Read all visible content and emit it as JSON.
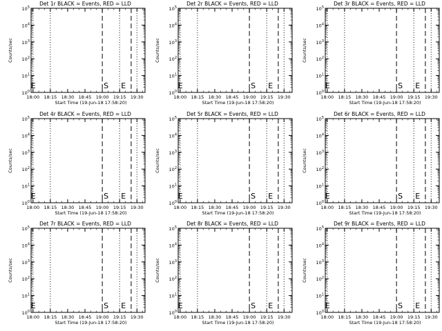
{
  "ylabel": "Counts/sec",
  "xlabel": "Start Time (19-Jun-18 17:58:20)",
  "xtick_labels": [
    "18:00",
    "18:15",
    "18:30",
    "18:45",
    "19:00",
    "19:15",
    "19:30"
  ],
  "ytick_labels": [
    {
      "base": "10",
      "exp": "0"
    },
    {
      "base": "10",
      "exp": "1"
    },
    {
      "base": "10",
      "exp": "2"
    },
    {
      "base": "10",
      "exp": "3"
    },
    {
      "base": "10",
      "exp": "4"
    },
    {
      "base": "10",
      "exp": "5"
    }
  ],
  "marker_letters": {
    "start": "S",
    "end": "E"
  },
  "colors": {
    "line": "#000000",
    "background": "#ffffff"
  },
  "chart_data": [
    {
      "type": "line",
      "title": "Det 1r BLACK = Events, RED = LLD",
      "yscale": "log",
      "ylim": [
        1,
        100000
      ],
      "x_domain": [
        "17:58:20",
        "19:37"
      ],
      "series": [],
      "dotted_lines": [
        "18:00",
        "18:15",
        "19:15",
        "19:30"
      ],
      "dashed_lines": [
        "19:00",
        "19:25"
      ],
      "markers": [
        {
          "label": "E",
          "x": "18:00"
        },
        {
          "label": "S",
          "x": "19:00"
        },
        {
          "label": "E",
          "x": "19:15"
        }
      ]
    },
    {
      "type": "line",
      "title": "Det 2r BLACK = Events, RED = LLD",
      "yscale": "log",
      "ylim": [
        1,
        100000
      ],
      "x_domain": [
        "17:58:20",
        "19:37"
      ],
      "series": [],
      "dotted_lines": [
        "18:00",
        "18:15",
        "19:15",
        "19:30"
      ],
      "dashed_lines": [
        "19:00",
        "19:25"
      ],
      "markers": [
        {
          "label": "E",
          "x": "18:00"
        },
        {
          "label": "S",
          "x": "19:00"
        },
        {
          "label": "E",
          "x": "19:15"
        }
      ]
    },
    {
      "type": "line",
      "title": "Det 3r BLACK = Events, RED = LLD",
      "yscale": "log",
      "ylim": [
        1,
        100000
      ],
      "x_domain": [
        "17:58:20",
        "19:37"
      ],
      "series": [],
      "dotted_lines": [
        "18:00",
        "18:15",
        "19:15",
        "19:30"
      ],
      "dashed_lines": [
        "19:00",
        "19:25"
      ],
      "markers": [
        {
          "label": "E",
          "x": "18:00"
        },
        {
          "label": "S",
          "x": "19:00"
        },
        {
          "label": "E",
          "x": "19:15"
        }
      ]
    },
    {
      "type": "line",
      "title": "Det 4r BLACK = Events, RED = LLD",
      "yscale": "log",
      "ylim": [
        1,
        100000
      ],
      "x_domain": [
        "17:58:20",
        "19:37"
      ],
      "series": [],
      "dotted_lines": [
        "18:00",
        "18:15",
        "19:15",
        "19:30"
      ],
      "dashed_lines": [
        "19:00",
        "19:25"
      ],
      "markers": [
        {
          "label": "E",
          "x": "18:00"
        },
        {
          "label": "S",
          "x": "19:00"
        },
        {
          "label": "E",
          "x": "19:15"
        }
      ]
    },
    {
      "type": "line",
      "title": "Det 5r BLACK = Events, RED = LLD",
      "yscale": "log",
      "ylim": [
        1,
        100000
      ],
      "x_domain": [
        "17:58:20",
        "19:37"
      ],
      "series": [],
      "dotted_lines": [
        "18:00",
        "18:15",
        "19:15",
        "19:30"
      ],
      "dashed_lines": [
        "19:00",
        "19:25"
      ],
      "markers": [
        {
          "label": "E",
          "x": "18:00"
        },
        {
          "label": "S",
          "x": "19:00"
        },
        {
          "label": "E",
          "x": "19:15"
        }
      ]
    },
    {
      "type": "line",
      "title": "Det 6r BLACK = Events, RED = LLD",
      "yscale": "log",
      "ylim": [
        1,
        100000
      ],
      "x_domain": [
        "17:58:20",
        "19:37"
      ],
      "series": [],
      "dotted_lines": [
        "18:00",
        "18:15",
        "19:15",
        "19:30"
      ],
      "dashed_lines": [
        "19:00",
        "19:25"
      ],
      "markers": [
        {
          "label": "E",
          "x": "18:00"
        },
        {
          "label": "S",
          "x": "19:00"
        },
        {
          "label": "E",
          "x": "19:15"
        }
      ]
    },
    {
      "type": "line",
      "title": "Det 7r BLACK = Events, RED = LLD",
      "yscale": "log",
      "ylim": [
        1,
        100000
      ],
      "x_domain": [
        "17:58:20",
        "19:37"
      ],
      "series": [],
      "dotted_lines": [
        "18:00",
        "18:15",
        "19:15",
        "19:30"
      ],
      "dashed_lines": [
        "19:00",
        "19:25"
      ],
      "markers": [
        {
          "label": "E",
          "x": "18:00"
        },
        {
          "label": "S",
          "x": "19:00"
        },
        {
          "label": "E",
          "x": "19:15"
        }
      ]
    },
    {
      "type": "line",
      "title": "Det 8r BLACK = Events, RED = LLD",
      "yscale": "log",
      "ylim": [
        1,
        100000
      ],
      "x_domain": [
        "17:58:20",
        "19:37"
      ],
      "series": [],
      "dotted_lines": [
        "18:00",
        "18:15",
        "19:15",
        "19:30"
      ],
      "dashed_lines": [
        "19:00",
        "19:25"
      ],
      "markers": [
        {
          "label": "E",
          "x": "18:00"
        },
        {
          "label": "S",
          "x": "19:00"
        },
        {
          "label": "E",
          "x": "19:15"
        }
      ]
    },
    {
      "type": "line",
      "title": "Det 9r BLACK = Events, RED = LLD",
      "yscale": "log",
      "ylim": [
        1,
        100000
      ],
      "x_domain": [
        "17:58:20",
        "19:37"
      ],
      "series": [],
      "dotted_lines": [
        "18:00",
        "18:15",
        "19:15",
        "19:30"
      ],
      "dashed_lines": [
        "19:00",
        "19:25"
      ],
      "markers": [
        {
          "label": "E",
          "x": "18:00"
        },
        {
          "label": "S",
          "x": "19:00"
        },
        {
          "label": "E",
          "x": "19:15"
        }
      ]
    }
  ]
}
